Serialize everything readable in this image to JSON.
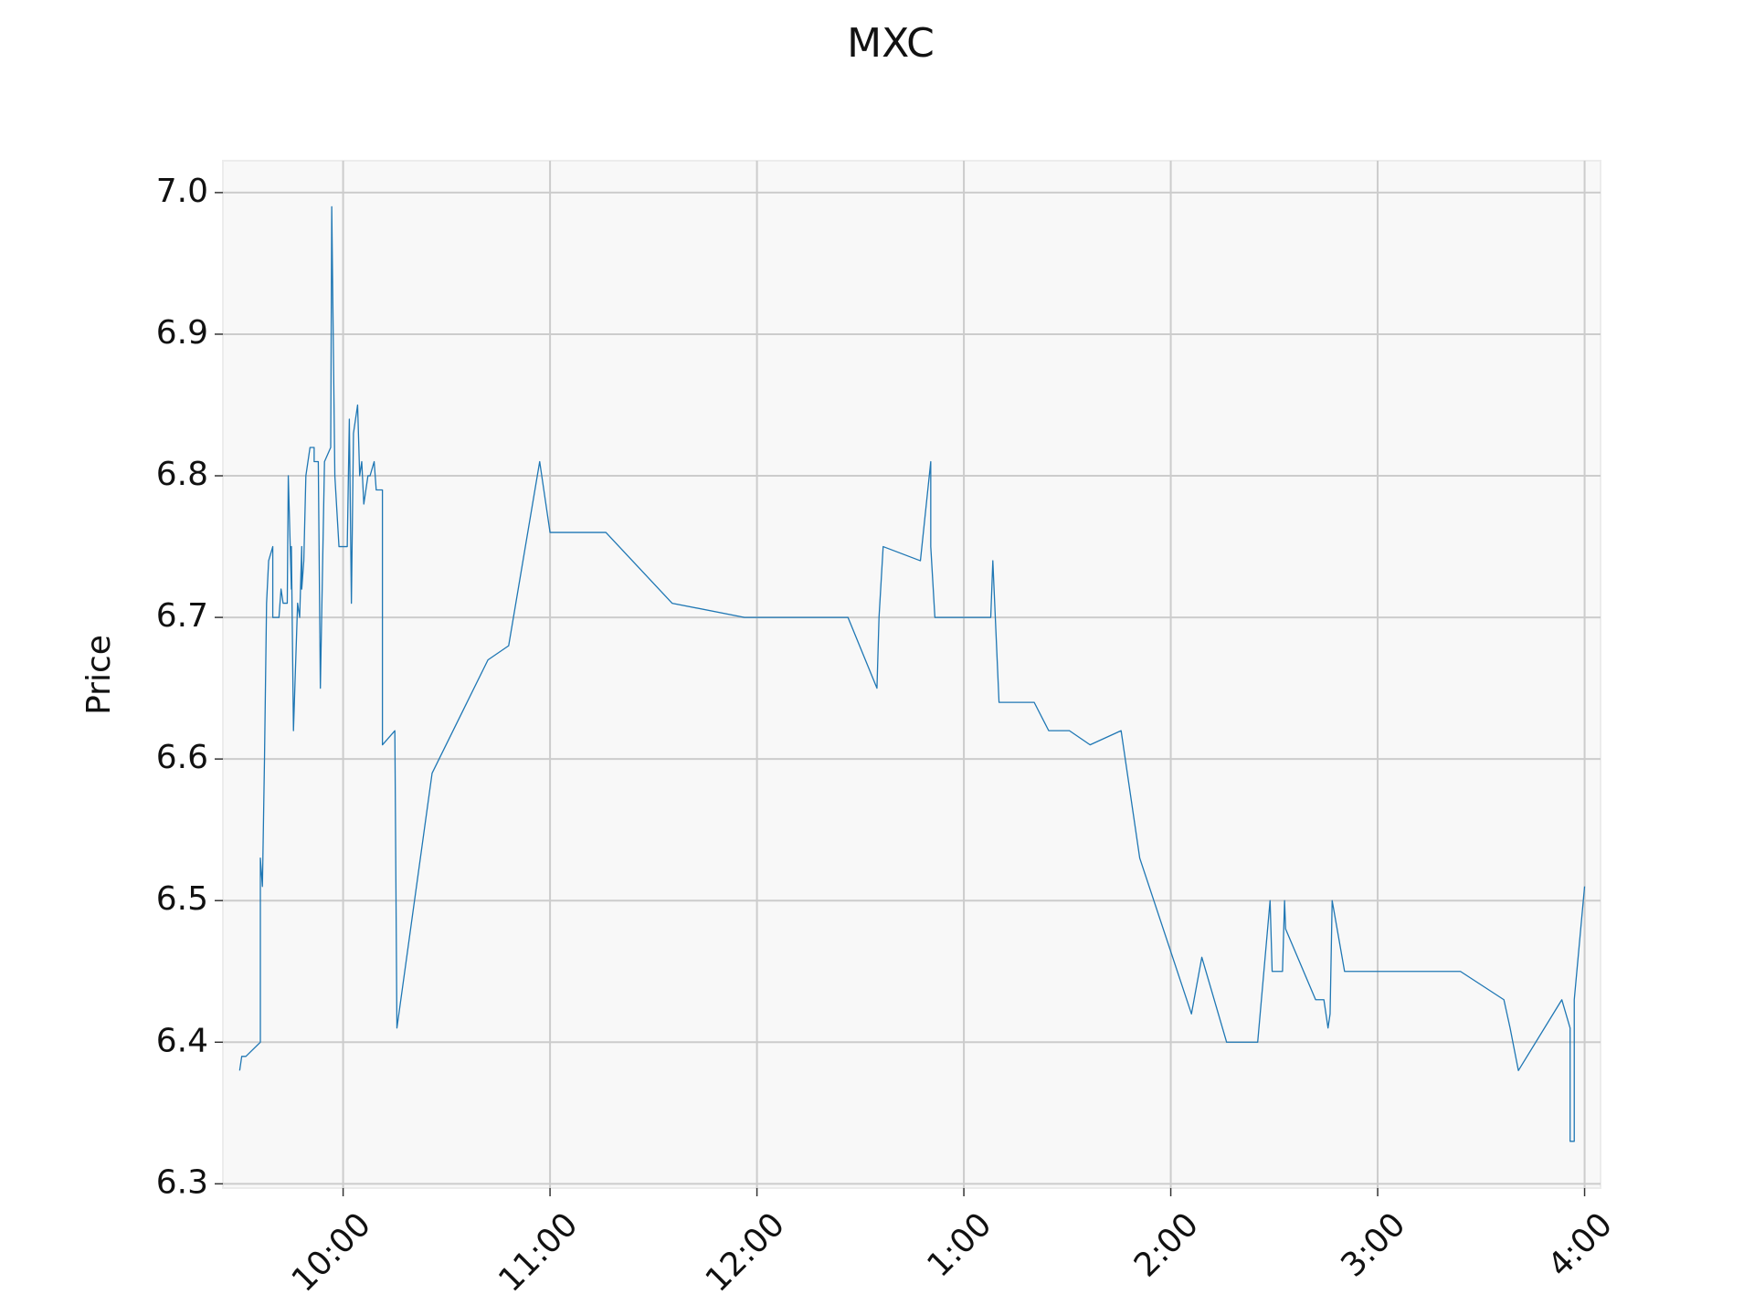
{
  "chart_data": {
    "type": "line",
    "title": "MXC",
    "y_label": "Price",
    "color": "#1f77b4",
    "grid": true,
    "x": [
      9.5,
      9.51,
      9.53,
      9.6,
      9.6,
      9.61,
      9.62,
      9.63,
      9.64,
      9.66,
      9.66,
      9.69,
      9.7,
      9.71,
      9.73,
      9.735,
      9.75,
      9.75,
      9.76,
      9.78,
      9.79,
      9.8,
      9.8,
      9.81,
      9.82,
      9.84,
      9.86,
      9.86,
      9.88,
      9.89,
      9.91,
      9.94,
      9.945,
      9.96,
      9.98,
      10.02,
      10.03,
      10.04,
      10.05,
      10.07,
      10.08,
      10.09,
      10.1,
      10.12,
      10.13,
      10.15,
      10.16,
      10.19,
      10.19,
      10.25,
      10.26,
      10.43,
      10.7,
      10.8,
      10.95,
      11.0,
      11.27,
      11.59,
      11.94,
      12.44,
      12.58,
      12.59,
      12.61,
      12.79,
      12.84,
      12.84,
      12.86,
      13.13,
      13.14,
      13.17,
      13.34,
      13.41,
      13.51,
      13.61,
      13.76,
      13.85,
      14.1,
      14.15,
      14.27,
      14.42,
      14.48,
      14.49,
      14.54,
      14.55,
      14.555,
      14.7,
      14.74,
      14.76,
      14.77,
      14.78,
      14.84,
      15.4,
      15.61,
      15.64,
      15.68,
      15.89,
      15.93,
      15.93,
      15.95,
      15.95,
      16.0
    ],
    "values": [
      6.38,
      6.39,
      6.39,
      6.4,
      6.53,
      6.51,
      6.6,
      6.71,
      6.74,
      6.75,
      6.7,
      6.7,
      6.72,
      6.71,
      6.71,
      6.8,
      6.72,
      6.75,
      6.62,
      6.71,
      6.7,
      6.75,
      6.72,
      6.74,
      6.8,
      6.82,
      6.82,
      6.81,
      6.81,
      6.65,
      6.81,
      6.82,
      6.99,
      6.8,
      6.75,
      6.75,
      6.84,
      6.71,
      6.83,
      6.85,
      6.8,
      6.81,
      6.78,
      6.8,
      6.8,
      6.81,
      6.79,
      6.79,
      6.61,
      6.62,
      6.41,
      6.59,
      6.67,
      6.68,
      6.81,
      6.76,
      6.76,
      6.71,
      6.7,
      6.7,
      6.65,
      6.7,
      6.75,
      6.74,
      6.81,
      6.75,
      6.7,
      6.7,
      6.74,
      6.64,
      6.64,
      6.62,
      6.62,
      6.61,
      6.62,
      6.53,
      6.42,
      6.46,
      6.4,
      6.4,
      6.5,
      6.45,
      6.45,
      6.5,
      6.48,
      6.43,
      6.43,
      6.41,
      6.42,
      6.5,
      6.45,
      6.45,
      6.43,
      6.41,
      6.38,
      6.43,
      6.41,
      6.33,
      6.33,
      6.43,
      6.51
    ],
    "xlim": [
      9.419,
      16.077
    ],
    "xticks": [
      {
        "value": 10,
        "label": "10:00"
      },
      {
        "value": 11,
        "label": "11:00"
      },
      {
        "value": 12,
        "label": "12:00"
      },
      {
        "value": 13,
        "label": "1:00"
      },
      {
        "value": 14,
        "label": "2:00"
      },
      {
        "value": 15,
        "label": "3:00"
      },
      {
        "value": 16,
        "label": "4:00"
      }
    ],
    "ylim": [
      6.297,
      7.0225
    ],
    "yticks": [
      6.3,
      6.4,
      6.5,
      6.6,
      6.7,
      6.8,
      6.9,
      {
        "value": 7.0,
        "label": "7.0"
      }
    ]
  }
}
